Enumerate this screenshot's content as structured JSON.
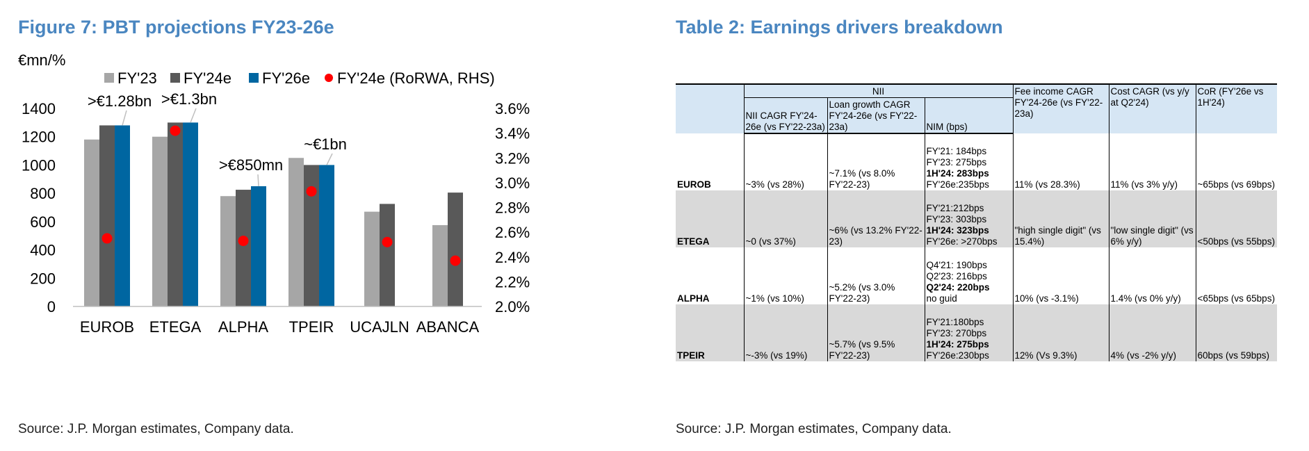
{
  "figure": {
    "title": "Figure 7: PBT projections FY23-26e",
    "unit": "€mn/%",
    "source": "Source: J.P. Morgan estimates, Company data."
  },
  "chart_data": {
    "type": "bar",
    "categories": [
      "EUROB",
      "ETEGA",
      "ALPHA",
      "TPEIR",
      "UCAJLN",
      "ABANCA"
    ],
    "series": [
      {
        "name": "FY'23",
        "values": [
          1180,
          1200,
          780,
          1050,
          670,
          575
        ],
        "color": "#a6a6a6"
      },
      {
        "name": "FY'24e",
        "values": [
          1280,
          1300,
          825,
          1000,
          725,
          805
        ],
        "color": "#595959"
      },
      {
        "name": "FY'26e",
        "values": [
          1280,
          1300,
          850,
          1000,
          null,
          null
        ],
        "color": "#0066a1"
      }
    ],
    "secondary_series": {
      "name": "FY'24e (RoRWA, RHS)",
      "values": [
        2.55,
        3.42,
        2.53,
        2.93,
        2.52,
        2.37
      ],
      "color": "#ff0000",
      "marker": "circle"
    },
    "ylim": [
      0,
      1400
    ],
    "yticks": [
      "0",
      "200",
      "400",
      "600",
      "800",
      "1000",
      "1200",
      "1400"
    ],
    "y2lim": [
      2.0,
      3.6
    ],
    "y2ticks": [
      "2.0%",
      "2.2%",
      "2.4%",
      "2.6%",
      "2.8%",
      "3.0%",
      "3.2%",
      "3.4%",
      "3.6%"
    ],
    "annotations": [
      {
        "category": "EUROB",
        "text": ">€1.28bn",
        "value": 1280
      },
      {
        "category": "ETEGA",
        "text": ">€1.3bn",
        "value": 1300
      },
      {
        "category": "ALPHA",
        "text": ">€850mn",
        "value": 850
      },
      {
        "category": "TPEIR",
        "text": "~€1bn",
        "value": 1000
      }
    ],
    "legend": "top",
    "grid": false
  },
  "table": {
    "title": "Table 2: Earnings drivers breakdown",
    "source": "Source: J.P. Morgan estimates, Company data.",
    "nii_group": "NII",
    "headers": {
      "nii_cagr": "NII CAGR FY'24-26e (vs FY'22-23a)",
      "loan_growth": "Loan growth CAGR FY'24-26e (vs FY'22-23a)",
      "nim": "NIM (bps)",
      "fee_income": "Fee income CAGR FY'24-26e (vs FY'22-23a)",
      "cost": "Cost CAGR (vs y/y at Q2'24)",
      "cor": "CoR (FY'26e vs 1H'24)"
    },
    "rows": [
      {
        "bank": "EUROB",
        "nii": "~3% (vs 28%)",
        "loan": "~7.1% (vs 8.0% FY'22-23)",
        "nim": [
          {
            "t": "FY'21: 184bps",
            "b": false
          },
          {
            "t": "FY'23: 275bps",
            "b": false
          },
          {
            "t": "1H'24: 283bps",
            "b": true
          },
          {
            "t": "FY'26e:235bps",
            "b": false
          }
        ],
        "fee": "11% (vs 28.3%)",
        "cost": "11% (vs 3% y/y)",
        "cor": "~65bps (vs 69bps)"
      },
      {
        "bank": "ETEGA",
        "nii": "~0 (vs 37%)",
        "loan": "~6% (vs 13.2% FY'22-23)",
        "nim": [
          {
            "t": "FY'21:212bps",
            "b": false
          },
          {
            "t": "FY'23: 303bps",
            "b": false
          },
          {
            "t": "1H'24: 323bps",
            "b": true
          },
          {
            "t": "FY'26e: >270bps",
            "b": false
          }
        ],
        "fee": "\"high single digit\" (vs 15.4%)",
        "cost": "\"low single digit\" (vs 6% y/y)",
        "cor": "<50bps (vs 55bps)"
      },
      {
        "bank": "ALPHA",
        "nii": "~1% (vs 10%)",
        "loan": "~5.2% (vs 3.0% FY'22-23)",
        "nim": [
          {
            "t": "Q4'21: 190bps",
            "b": false
          },
          {
            "t": "Q2'23: 216bps",
            "b": false
          },
          {
            "t": "Q2'24: 220bps",
            "b": true
          },
          {
            "t": "no guid",
            "b": false
          }
        ],
        "fee": "10% (vs -3.1%)",
        "cost": "1.4% (vs 0% y/y)",
        "cor": "<65bps (vs 65bps)"
      },
      {
        "bank": "TPEIR",
        "nii": "~-3% (vs 19%)",
        "loan": "~5.7% (vs 9.5% FY'22-23)",
        "nim": [
          {
            "t": "FY'21:180bps",
            "b": false
          },
          {
            "t": "FY'23: 270bps",
            "b": false
          },
          {
            "t": "1H'24: 275bps",
            "b": true
          },
          {
            "t": "FY'26e:230bps",
            "b": false
          }
        ],
        "fee": "12% (Vs 9.3%)",
        "cost": "4% (vs -2% y/y)",
        "cor": "60bps (vs 59bps)"
      }
    ]
  }
}
